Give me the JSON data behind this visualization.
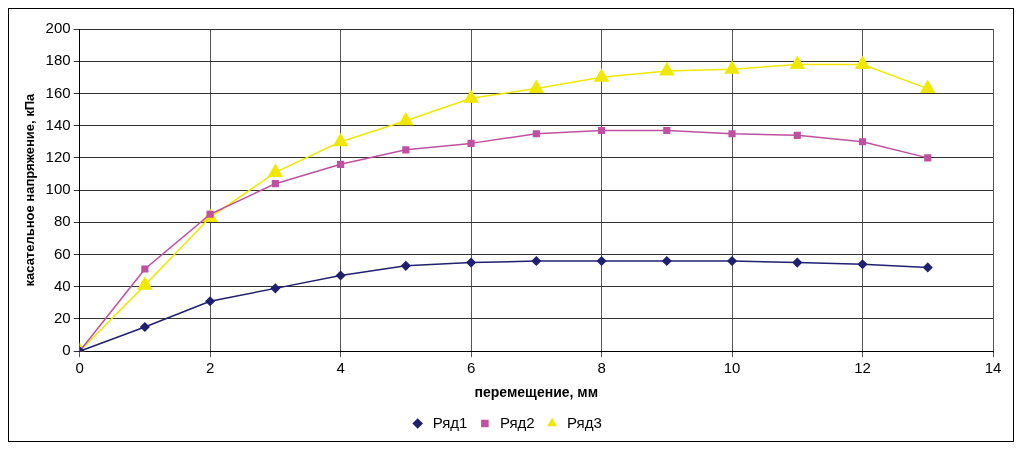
{
  "chart_data": {
    "type": "line",
    "xlabel": "перемещение, мм",
    "ylabel": "касательное напряжение, кПа",
    "x": [
      0,
      1,
      2,
      3,
      4,
      5,
      6,
      7,
      8,
      9,
      10,
      11,
      12,
      13
    ],
    "series": [
      {
        "name": "Ряд1",
        "color": "#1f2070",
        "marker": "diamond",
        "values": [
          0,
          15,
          31,
          39,
          47,
          53,
          55,
          56,
          56,
          56,
          56,
          55,
          54,
          52
        ]
      },
      {
        "name": "Ряд2",
        "color": "#c050a0",
        "marker": "square",
        "values": [
          0,
          51,
          85,
          104,
          116,
          125,
          129,
          135,
          137,
          137,
          135,
          134,
          130,
          120
        ]
      },
      {
        "name": "Ряд3",
        "color": "#f0e800",
        "marker": "triangle",
        "values": [
          0,
          41,
          83,
          111,
          130,
          143,
          157,
          163,
          170,
          174,
          175,
          178,
          178,
          163
        ]
      }
    ],
    "xlim": [
      0,
      14
    ],
    "xticks": [
      0,
      2,
      4,
      6,
      8,
      10,
      12,
      14
    ],
    "ylim": [
      0,
      200
    ],
    "yticks": [
      0,
      20,
      40,
      60,
      80,
      100,
      120,
      140,
      160,
      180,
      200
    ],
    "grid": true,
    "legend": "bottom",
    "line_style": "solid"
  }
}
